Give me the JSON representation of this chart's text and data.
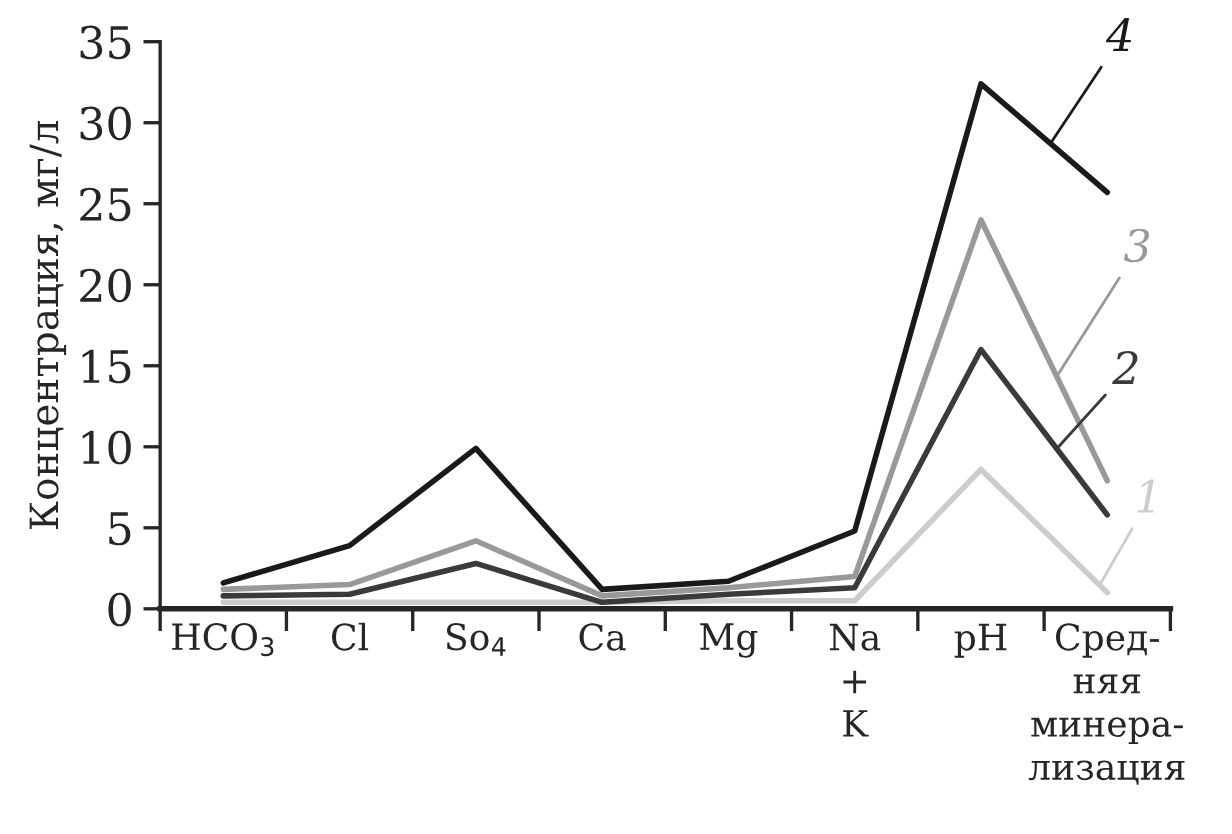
{
  "chart_data": {
    "type": "line",
    "ylabel": "Концентрация, мг/л",
    "categories": [
      "HCO$_{3}$",
      "Cl",
      "So$_{4}$",
      "Ca",
      "Mg",
      "Na\n+\nK",
      "pH",
      "Сред-\nняя\nминера-\nлизация"
    ],
    "series": [
      {
        "name": "1",
        "color": "#cccccc",
        "values": [
          0.4,
          0.4,
          0.4,
          0.4,
          0.5,
          0.5,
          8.6,
          1.0
        ]
      },
      {
        "name": "2",
        "color": "#3a3a3a",
        "values": [
          0.8,
          0.9,
          2.8,
          0.4,
          0.9,
          1.3,
          16.0,
          5.8
        ]
      },
      {
        "name": "3",
        "color": "#999999",
        "values": [
          1.2,
          1.5,
          4.2,
          0.8,
          1.3,
          2.0,
          24.0,
          7.9
        ]
      },
      {
        "name": "4",
        "color": "#1a1a1a",
        "values": [
          1.6,
          3.9,
          9.9,
          1.2,
          1.7,
          4.8,
          32.4,
          25.7
        ]
      }
    ],
    "ylim": [
      0,
      35
    ],
    "yticks": [
      0,
      5,
      10,
      15,
      20,
      25,
      30,
      35
    ],
    "grid": false,
    "legend": false,
    "marker": "none",
    "line_style": "solid"
  }
}
